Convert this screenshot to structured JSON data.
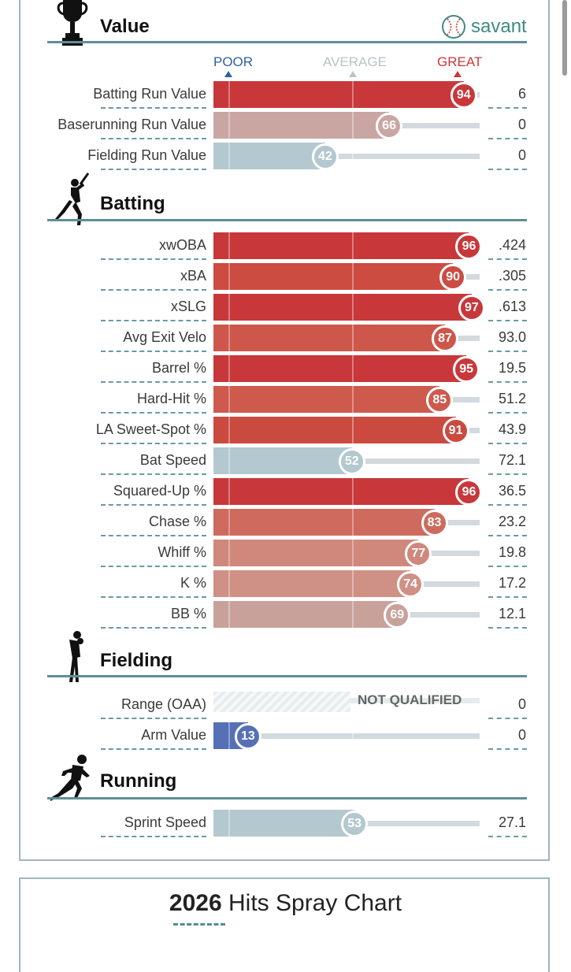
{
  "brand": {
    "name": "savant"
  },
  "scale": {
    "poor": "POOR",
    "average": "AVERAGE",
    "great": "GREAT"
  },
  "colors": {
    "section_line": "#5f8e97",
    "great": "#c8383a",
    "poor": "#2f5fa0",
    "average_gray": "#b8c4c8"
  },
  "sections": {
    "value": {
      "title": "Value",
      "icon": "trophy-icon",
      "rows": [
        {
          "label": "Batting Run Value",
          "percentile": 94,
          "stat": "6",
          "color": "#c8383a"
        },
        {
          "label": "Baserunning Run Value",
          "percentile": 66,
          "stat": "0",
          "color": "#c9a6a2"
        },
        {
          "label": "Fielding Run Value",
          "percentile": 42,
          "stat": "0",
          "color": "#b3c8cf"
        }
      ]
    },
    "batting": {
      "title": "Batting",
      "icon": "batter-icon",
      "rows": [
        {
          "label": "xwOBA",
          "percentile": 96,
          "stat": ".424",
          "color": "#c8383a"
        },
        {
          "label": "xBA",
          "percentile": 90,
          "stat": ".305",
          "color": "#cc4c42"
        },
        {
          "label": "xSLG",
          "percentile": 97,
          "stat": ".613",
          "color": "#c8383a"
        },
        {
          "label": "Avg Exit Velo",
          "percentile": 87,
          "stat": "93.0",
          "color": "#cd574a"
        },
        {
          "label": "Barrel %",
          "percentile": 95,
          "stat": "19.5",
          "color": "#c8383a"
        },
        {
          "label": "Hard-Hit %",
          "percentile": 85,
          "stat": "51.2",
          "color": "#cd5a4d"
        },
        {
          "label": "LA Sweet-Spot %",
          "percentile": 91,
          "stat": "43.9",
          "color": "#cb4a40"
        },
        {
          "label": "Bat Speed",
          "percentile": 52,
          "stat": "72.1",
          "color": "#b3c8cf"
        },
        {
          "label": "Squared-Up %",
          "percentile": 96,
          "stat": "36.5",
          "color": "#c8383a"
        },
        {
          "label": "Chase %",
          "percentile": 83,
          "stat": "23.2",
          "color": "#ce6b5e"
        },
        {
          "label": "Whiff %",
          "percentile": 77,
          "stat": "19.8",
          "color": "#d0887c"
        },
        {
          "label": "K %",
          "percentile": 74,
          "stat": "17.2",
          "color": "#cf9085"
        },
        {
          "label": "BB %",
          "percentile": 69,
          "stat": "12.1",
          "color": "#c9a19b"
        }
      ]
    },
    "fielding": {
      "title": "Fielding",
      "icon": "fielder-icon",
      "rows": [
        {
          "label": "Range (OAA)",
          "percentile": null,
          "stat": "0",
          "not_qualified": "NOT QUALIFIED"
        },
        {
          "label": "Arm Value",
          "percentile": 13,
          "stat": "0",
          "color": "#5670b6"
        }
      ]
    },
    "running": {
      "title": "Running",
      "icon": "runner-icon",
      "rows": [
        {
          "label": "Sprint Speed",
          "percentile": 53,
          "stat": "27.1",
          "color": "#b3c8cf"
        }
      ]
    }
  },
  "spray": {
    "year": "2026",
    "title": "Hits Spray Chart"
  }
}
